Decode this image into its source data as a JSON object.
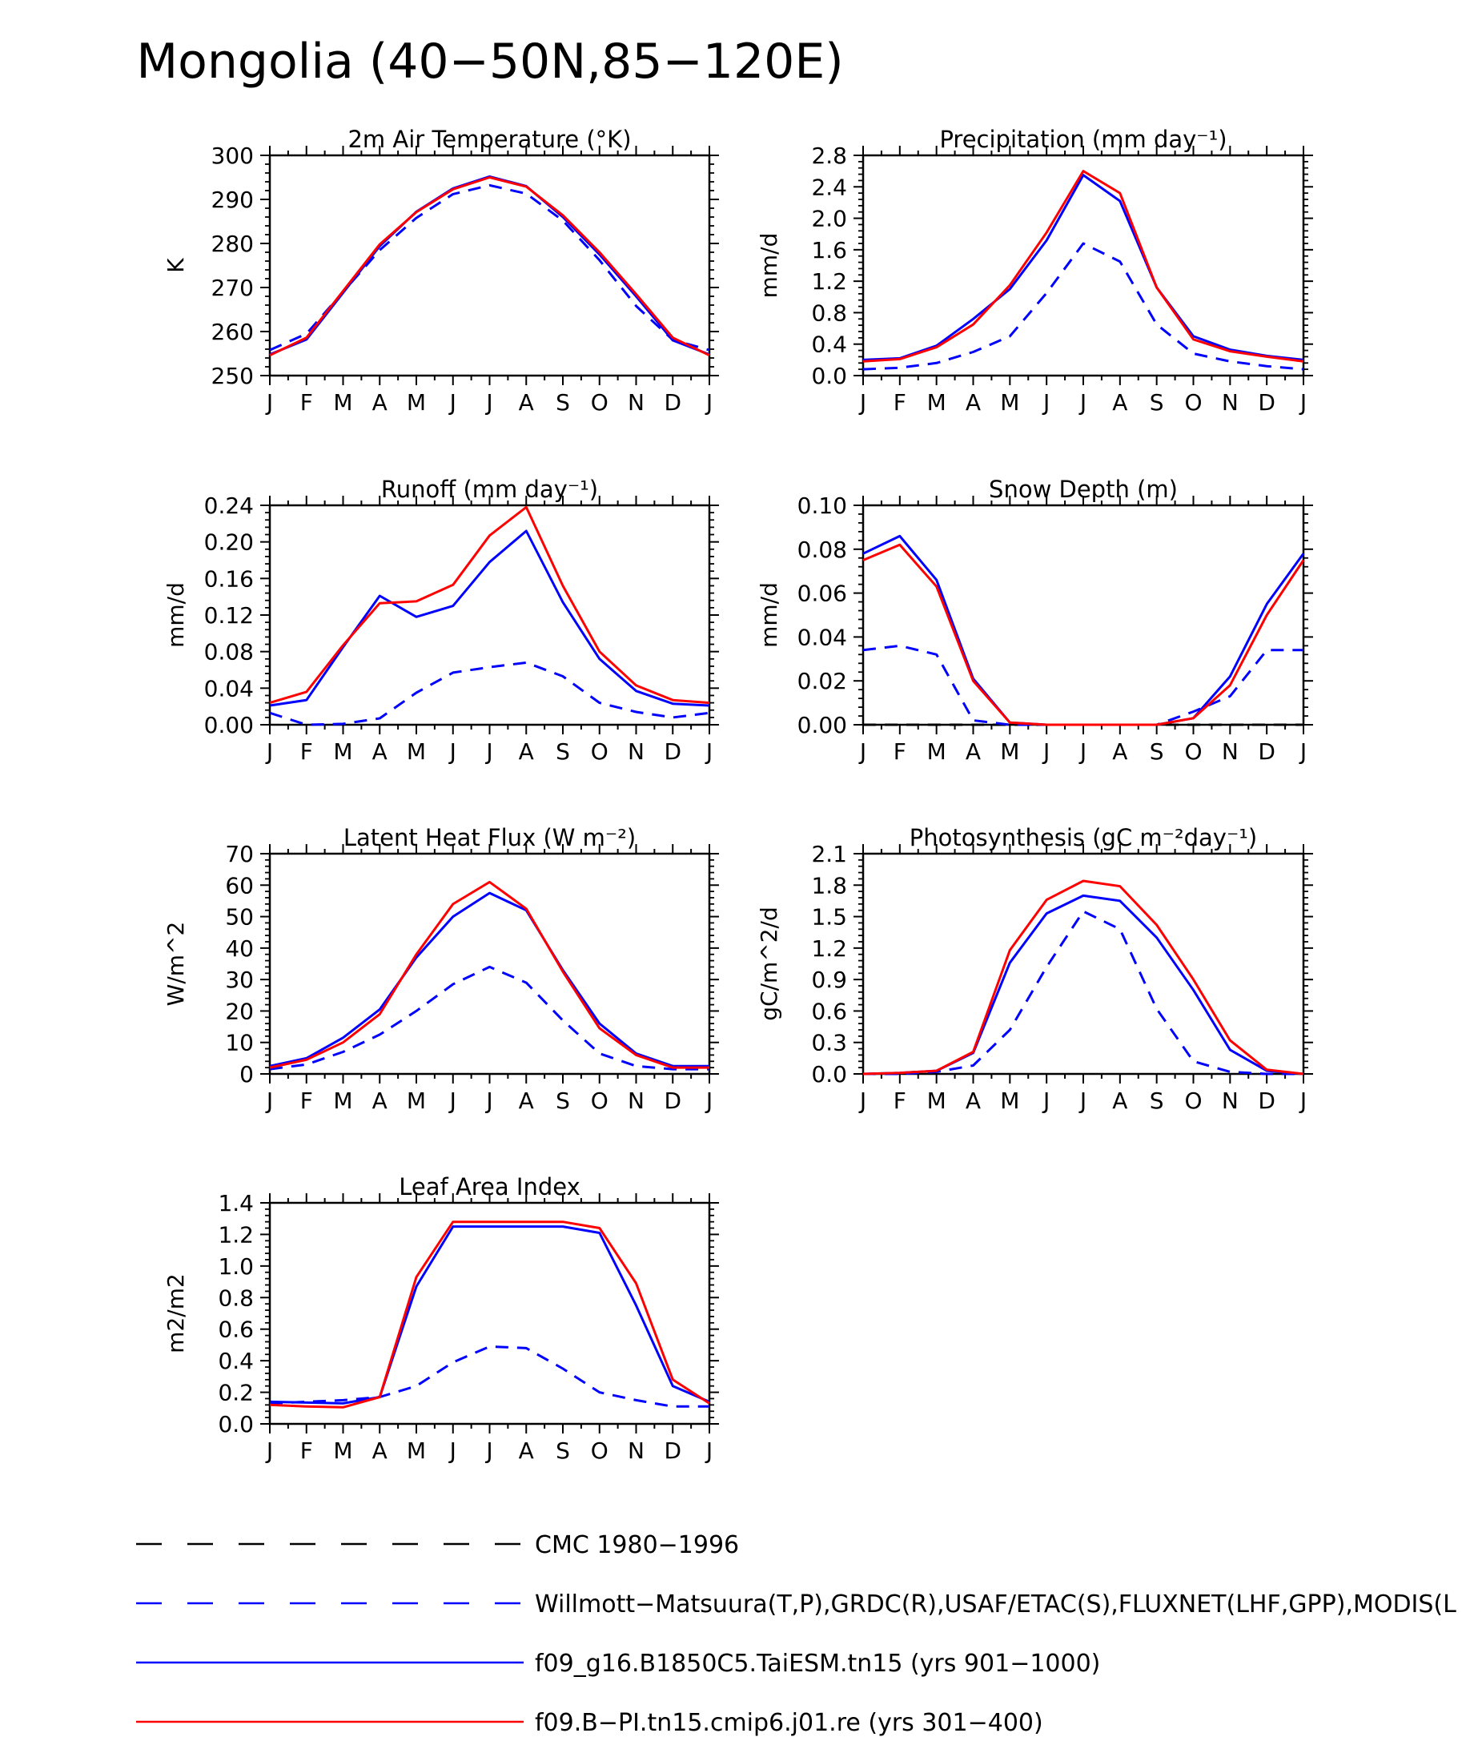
{
  "figure": {
    "title": "Mongolia (40−50N,85−120E)",
    "month_labels": [
      "J",
      "F",
      "M",
      "A",
      "M",
      "J",
      "J",
      "A",
      "S",
      "O",
      "N",
      "D",
      "J"
    ]
  },
  "colors": {
    "obs": "#0000ff",
    "cmc": "#000000",
    "taiesm": "#0000ff",
    "cmip6": "#ff0000"
  },
  "legend": [
    {
      "key": "cmc",
      "label": "CMC 1980−1996",
      "color": "#000000",
      "dashed": true
    },
    {
      "key": "obs",
      "label": "Willmott−Matsuura(T,P),GRDC(R),USAF/ETAC(S),FLUXNET(LHF,GPP),MODIS(L",
      "color": "#0000ff",
      "dashed": true
    },
    {
      "key": "taiesm",
      "label": "f09_g16.B1850C5.TaiESM.tn15 (yrs 901−1000)",
      "color": "#0000ff",
      "dashed": false
    },
    {
      "key": "cmip6",
      "label": "f09.B−PI.tn15.cmip6.j01.re (yrs 301−400)",
      "color": "#ff0000",
      "dashed": false
    }
  ],
  "chart_data": [
    {
      "type": "line",
      "title": "2m Air Temperature (°K)",
      "ylabel": "K",
      "ylim": [
        250,
        300
      ],
      "yticks": [
        "250",
        "260",
        "270",
        "280",
        "290",
        "300"
      ],
      "x": [
        "J",
        "F",
        "M",
        "A",
        "M",
        "J",
        "J",
        "A",
        "S",
        "O",
        "N",
        "D",
        "J"
      ],
      "series": [
        {
          "key": "obs",
          "style": "dashed",
          "values": [
            255.8,
            259.5,
            269,
            278.5,
            285.8,
            291.2,
            293.2,
            291.3,
            285.2,
            276.2,
            265.8,
            258.1,
            255.8
          ]
        },
        {
          "key": "taiesm",
          "style": "solid",
          "values": [
            254.8,
            258.2,
            268.8,
            279.4,
            287.2,
            292.5,
            295.2,
            293.0,
            286.0,
            277.5,
            268.0,
            258.0,
            254.8
          ]
        },
        {
          "key": "cmip6",
          "style": "solid",
          "values": [
            254.6,
            258.6,
            269.2,
            279.8,
            287.1,
            292.3,
            295.0,
            292.9,
            286.4,
            278.0,
            268.5,
            258.6,
            254.6
          ]
        }
      ]
    },
    {
      "type": "line",
      "title": "Precipitation (mm day⁻¹)",
      "ylabel": "mm/d",
      "ylim": [
        0,
        2.8
      ],
      "yticks": [
        "0.0",
        "0.4",
        "0.8",
        "1.2",
        "1.6",
        "2.0",
        "2.4",
        "2.8"
      ],
      "x": [
        "J",
        "F",
        "M",
        "A",
        "M",
        "J",
        "J",
        "A",
        "S",
        "O",
        "N",
        "D",
        "J"
      ],
      "series": [
        {
          "key": "obs",
          "style": "dashed",
          "values": [
            0.08,
            0.1,
            0.16,
            0.3,
            0.5,
            1.05,
            1.68,
            1.45,
            0.65,
            0.28,
            0.18,
            0.12,
            0.08
          ]
        },
        {
          "key": "taiesm",
          "style": "solid",
          "values": [
            0.2,
            0.22,
            0.38,
            0.72,
            1.1,
            1.72,
            2.55,
            2.22,
            1.12,
            0.5,
            0.33,
            0.25,
            0.2
          ]
        },
        {
          "key": "cmip6",
          "style": "solid",
          "values": [
            0.18,
            0.21,
            0.36,
            0.65,
            1.15,
            1.82,
            2.6,
            2.32,
            1.12,
            0.46,
            0.31,
            0.24,
            0.18
          ]
        }
      ]
    },
    {
      "type": "line",
      "title": "Runoff (mm day⁻¹)",
      "ylabel": "mm/d",
      "ylim": [
        0,
        0.24
      ],
      "yticks": [
        "0.00",
        "0.04",
        "0.08",
        "0.12",
        "0.16",
        "0.20",
        "0.24"
      ],
      "x": [
        "J",
        "F",
        "M",
        "A",
        "M",
        "J",
        "J",
        "A",
        "S",
        "O",
        "N",
        "D",
        "J"
      ],
      "series": [
        {
          "key": "obs",
          "style": "dashed",
          "values": [
            0.013,
            0.0,
            0.001,
            0.007,
            0.035,
            0.057,
            0.063,
            0.068,
            0.053,
            0.024,
            0.014,
            0.008,
            0.013
          ]
        },
        {
          "key": "taiesm",
          "style": "solid",
          "values": [
            0.021,
            0.027,
            0.085,
            0.141,
            0.118,
            0.13,
            0.178,
            0.212,
            0.134,
            0.072,
            0.037,
            0.023,
            0.021
          ]
        },
        {
          "key": "cmip6",
          "style": "solid",
          "values": [
            0.024,
            0.036,
            0.087,
            0.133,
            0.135,
            0.153,
            0.207,
            0.238,
            0.152,
            0.08,
            0.043,
            0.027,
            0.024
          ]
        }
      ]
    },
    {
      "type": "line",
      "title": "Snow Depth (m)",
      "ylabel": "mm/d",
      "ylim": [
        0,
        0.1
      ],
      "yticks": [
        "0.00",
        "0.02",
        "0.04",
        "0.06",
        "0.08",
        "0.10"
      ],
      "x": [
        "J",
        "F",
        "M",
        "A",
        "M",
        "J",
        "J",
        "A",
        "S",
        "O",
        "N",
        "D",
        "J"
      ],
      "series": [
        {
          "key": "cmc",
          "style": "dashed",
          "values": [
            0,
            0,
            0,
            0,
            0,
            0,
            0,
            0,
            0,
            0,
            0,
            0,
            0
          ]
        },
        {
          "key": "obs",
          "style": "dashed",
          "values": [
            0.034,
            0.036,
            0.032,
            0.002,
            0.0,
            0.0,
            0.0,
            0.0,
            0.0,
            0.006,
            0.013,
            0.034,
            0.034
          ]
        },
        {
          "key": "taiesm",
          "style": "solid",
          "values": [
            0.078,
            0.086,
            0.066,
            0.021,
            0.001,
            0.0,
            0.0,
            0.0,
            0.0,
            0.003,
            0.022,
            0.055,
            0.078
          ]
        },
        {
          "key": "cmip6",
          "style": "solid",
          "values": [
            0.075,
            0.082,
            0.063,
            0.02,
            0.001,
            0.0,
            0.0,
            0.0,
            0.0,
            0.003,
            0.018,
            0.05,
            0.075
          ]
        }
      ]
    },
    {
      "type": "line",
      "title": "Latent Heat Flux (W m⁻²)",
      "ylabel": "W/m^2",
      "ylim": [
        0,
        70
      ],
      "yticks": [
        "0",
        "10",
        "20",
        "30",
        "40",
        "50",
        "60",
        "70"
      ],
      "x": [
        "J",
        "F",
        "M",
        "A",
        "M",
        "J",
        "J",
        "A",
        "S",
        "O",
        "N",
        "D",
        "J"
      ],
      "series": [
        {
          "key": "obs",
          "style": "dashed",
          "values": [
            1.5,
            3.0,
            7.0,
            12.5,
            20,
            28.5,
            34,
            29,
            17,
            6.5,
            2.5,
            1.5,
            1.5
          ]
        },
        {
          "key": "taiesm",
          "style": "solid",
          "values": [
            2.5,
            5,
            11.5,
            20.5,
            37,
            50,
            57.5,
            52,
            33,
            16,
            6.5,
            2.5,
            2.5
          ]
        },
        {
          "key": "cmip6",
          "style": "solid",
          "values": [
            2.0,
            4.5,
            10,
            19,
            38,
            54,
            61,
            52.5,
            32.5,
            14.5,
            6,
            2,
            2
          ]
        }
      ]
    },
    {
      "type": "line",
      "title": "Photosynthesis (gC m⁻²day⁻¹)",
      "ylabel": "gC/m^2/d",
      "ylim": [
        0,
        2.1
      ],
      "yticks": [
        "0.0",
        "0.3",
        "0.6",
        "0.9",
        "1.2",
        "1.5",
        "1.8",
        "2.1"
      ],
      "x": [
        "J",
        "F",
        "M",
        "A",
        "M",
        "J",
        "J",
        "A",
        "S",
        "O",
        "N",
        "D",
        "J"
      ],
      "series": [
        {
          "key": "obs",
          "style": "dashed",
          "values": [
            0,
            0,
            0.02,
            0.08,
            0.42,
            1.02,
            1.55,
            1.38,
            0.62,
            0.12,
            0.02,
            0.0,
            0.0
          ]
        },
        {
          "key": "taiesm",
          "style": "solid",
          "values": [
            0,
            0.01,
            0.03,
            0.2,
            1.06,
            1.53,
            1.7,
            1.65,
            1.3,
            0.8,
            0.23,
            0.03,
            0.0
          ]
        },
        {
          "key": "cmip6",
          "style": "solid",
          "values": [
            0,
            0.01,
            0.03,
            0.21,
            1.18,
            1.66,
            1.84,
            1.79,
            1.42,
            0.9,
            0.32,
            0.04,
            0.0
          ]
        }
      ]
    },
    {
      "type": "line",
      "title": "Leaf Area Index",
      "ylabel": "m2/m2",
      "ylim": [
        0,
        1.4
      ],
      "yticks": [
        "0.0",
        "0.2",
        "0.4",
        "0.6",
        "0.8",
        "1.0",
        "1.2",
        "1.4"
      ],
      "x": [
        "J",
        "F",
        "M",
        "A",
        "M",
        "J",
        "J",
        "A",
        "S",
        "O",
        "N",
        "D",
        "J"
      ],
      "series": [
        {
          "key": "obs",
          "style": "dashed",
          "values": [
            0.13,
            0.14,
            0.15,
            0.17,
            0.24,
            0.39,
            0.49,
            0.48,
            0.35,
            0.2,
            0.15,
            0.11,
            0.11
          ]
        },
        {
          "key": "taiesm",
          "style": "solid",
          "values": [
            0.14,
            0.135,
            0.13,
            0.17,
            0.87,
            1.25,
            1.25,
            1.25,
            1.25,
            1.21,
            0.75,
            0.24,
            0.14
          ]
        },
        {
          "key": "cmip6",
          "style": "solid",
          "values": [
            0.12,
            0.11,
            0.105,
            0.17,
            0.93,
            1.28,
            1.28,
            1.28,
            1.28,
            1.24,
            0.89,
            0.28,
            0.13
          ]
        }
      ]
    }
  ]
}
